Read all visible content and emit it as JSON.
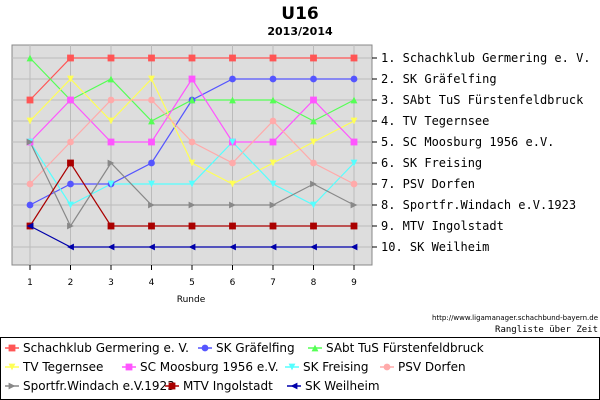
{
  "chart_data": {
    "type": "line",
    "title": "U16",
    "subtitle": "2013/2014",
    "xlabel": "Runde",
    "ylabel": "",
    "x": [
      1,
      2,
      3,
      4,
      5,
      6,
      7,
      8,
      9
    ],
    "ylim": [
      0.5,
      10.5
    ],
    "y_inverted": true,
    "grid": true,
    "legend_position": "bottom",
    "source_url": "http://www.ligamanager.schachbund-bayern.de",
    "caption": "Rangliste über Zeit",
    "right_labels": [
      "1. Schachklub Germering e. V.",
      "2. SK Gräfelfing",
      "3. SAbt TuS Fürstenfeldbruck",
      "4. TV Tegernsee",
      "5. SC Moosburg 1956 e.V.",
      "6. SK Freising",
      "7. PSV Dorfen",
      "8. Sportfr.Windach e.V.1923",
      "9. MTV Ingolstadt",
      "10. SK Weilheim"
    ],
    "series": [
      {
        "name": "Schachklub Germering e. V.",
        "color": "#ff5555",
        "marker": "square",
        "values": [
          3,
          1,
          1,
          1,
          1,
          1,
          1,
          1,
          1
        ]
      },
      {
        "name": "SK Gräfelfing",
        "color": "#5555ff",
        "marker": "circle",
        "values": [
          8,
          7,
          7,
          6,
          3,
          2,
          2,
          2,
          2
        ]
      },
      {
        "name": "SAbt TuS Fürstenfeldbruck",
        "color": "#55ff55",
        "marker": "triangle-up",
        "values": [
          1,
          3,
          2,
          4,
          3,
          3,
          3,
          4,
          3
        ]
      },
      {
        "name": "TV Tegernsee",
        "color": "#ffff55",
        "marker": "triangle-down",
        "values": [
          4,
          2,
          4,
          2,
          6,
          7,
          6,
          5,
          4
        ]
      },
      {
        "name": "SC Moosburg 1956 e.V.",
        "color": "#ff55ff",
        "marker": "square",
        "values": [
          5,
          3,
          5,
          5,
          2,
          5,
          5,
          3,
          5
        ]
      },
      {
        "name": "SK Freising",
        "color": "#55ffff",
        "marker": "triangle-down",
        "values": [
          5,
          8,
          7,
          7,
          7,
          5,
          7,
          8,
          6
        ]
      },
      {
        "name": "PSV Dorfen",
        "color": "#ffaaaa",
        "marker": "circle",
        "values": [
          7,
          5,
          3,
          3,
          5,
          6,
          4,
          6,
          7
        ]
      },
      {
        "name": "Sportfr.Windach e.V.1923",
        "color": "#888888",
        "marker": "triangle-right",
        "values": [
          5,
          9,
          6,
          8,
          8,
          8,
          8,
          7,
          8
        ]
      },
      {
        "name": "MTV Ingolstadt",
        "color": "#aa0000",
        "marker": "square",
        "values": [
          9,
          6,
          9,
          9,
          9,
          9,
          9,
          9,
          9
        ]
      },
      {
        "name": "SK Weilheim",
        "color": "#0000aa",
        "marker": "triangle-left",
        "values": [
          9,
          10,
          10,
          10,
          10,
          10,
          10,
          10,
          10
        ]
      }
    ]
  }
}
